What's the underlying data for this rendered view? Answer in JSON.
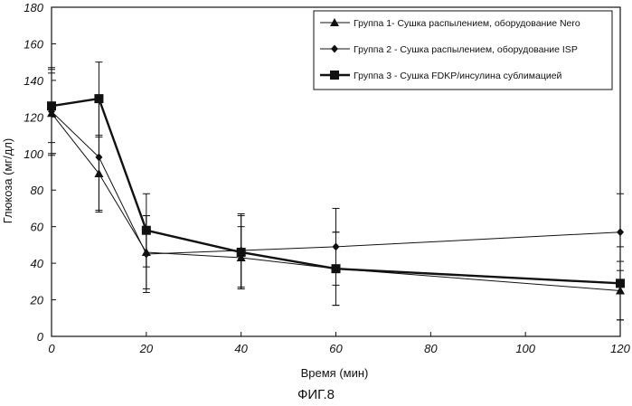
{
  "chart_data": {
    "type": "line",
    "title": "",
    "xlabel": "Время (мин)",
    "ylabel": "Глюкоза (мг/дл)",
    "xlim": [
      0,
      120
    ],
    "ylim": [
      0,
      180
    ],
    "x_ticks": [
      0,
      20,
      40,
      60,
      80,
      100,
      120
    ],
    "y_ticks": [
      0,
      20,
      40,
      60,
      80,
      100,
      120,
      140,
      160,
      180
    ],
    "grid": false,
    "legend_position": "top-right",
    "series": [
      {
        "name": "Группа 1- Сушка распылением, оборудование Nero",
        "marker": "triangle",
        "x": [
          0,
          10,
          20,
          40,
          60,
          120
        ],
        "y": [
          122,
          89,
          46,
          43,
          37,
          25
        ],
        "err": [
          22,
          20,
          20,
          17,
          20,
          16
        ]
      },
      {
        "name": "Группа 2 - Сушка распылением, оборудование ISP",
        "marker": "diamond",
        "x": [
          0,
          10,
          20,
          40,
          60,
          120
        ],
        "y": [
          123,
          98,
          45,
          47,
          49,
          57
        ],
        "err": [
          24,
          30,
          21,
          20,
          21,
          21
        ]
      },
      {
        "name": "Группа 3 - Сушка FDKP/инсулина сублимацией",
        "marker": "square",
        "x": [
          0,
          10,
          20,
          40,
          60,
          120
        ],
        "y": [
          126,
          130,
          58,
          46,
          37,
          29
        ],
        "err": [
          20,
          20,
          20,
          20,
          20,
          20
        ]
      }
    ]
  },
  "caption": "ФИГ.8"
}
